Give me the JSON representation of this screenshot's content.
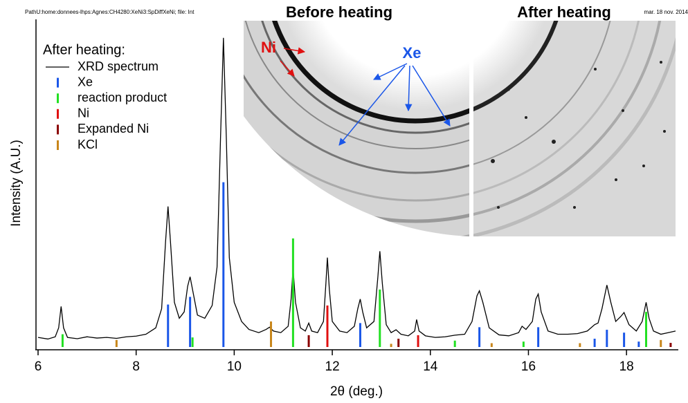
{
  "chart_data": {
    "type": "line",
    "path_text": "PathU:home:donnees-lhps:Agnes:CH4280:XeNi3:SpDiffXeNi; file: Int",
    "date_text": "mar. 18 nov. 2014",
    "panel_titles": [
      "Before heating",
      "After heating"
    ],
    "annotations": [
      "Ni",
      "Xe"
    ],
    "legend_title": "After heating:",
    "x_label": "2θ (deg.)",
    "y_label": "Intensity (A.U.)",
    "xlim": [
      6,
      19
    ],
    "xticks": [
      6,
      8,
      10,
      12,
      14,
      16,
      18
    ],
    "ylim": [
      0,
      100
    ],
    "series": [
      {
        "name": "XRD spectrum",
        "kind": "line",
        "color": "#000000",
        "x": [
          6.0,
          6.2,
          6.35,
          6.42,
          6.47,
          6.52,
          6.6,
          6.8,
          7.0,
          7.2,
          7.4,
          7.6,
          7.8,
          8.0,
          8.2,
          8.4,
          8.52,
          8.6,
          8.65,
          8.7,
          8.78,
          8.88,
          8.98,
          9.05,
          9.1,
          9.15,
          9.25,
          9.4,
          9.55,
          9.65,
          9.72,
          9.78,
          9.84,
          9.9,
          10.0,
          10.15,
          10.3,
          10.5,
          10.65,
          10.72,
          10.8,
          10.95,
          11.1,
          11.16,
          11.2,
          11.25,
          11.35,
          11.45,
          11.52,
          11.58,
          11.7,
          11.82,
          11.87,
          11.9,
          11.94,
          12.0,
          12.15,
          12.3,
          12.45,
          12.52,
          12.57,
          12.62,
          12.7,
          12.85,
          12.93,
          12.97,
          13.02,
          13.1,
          13.2,
          13.3,
          13.4,
          13.55,
          13.68,
          13.72,
          13.77,
          13.9,
          14.1,
          14.3,
          14.5,
          14.7,
          14.85,
          14.95,
          15.0,
          15.07,
          15.2,
          15.4,
          15.6,
          15.8,
          15.87,
          15.95,
          16.08,
          16.15,
          16.2,
          16.26,
          16.4,
          16.6,
          16.8,
          17.0,
          17.2,
          17.35,
          17.42,
          17.5,
          17.6,
          17.68,
          17.78,
          17.88,
          17.95,
          18.05,
          18.2,
          18.32,
          18.4,
          18.46,
          18.55,
          18.7,
          18.85,
          19.0
        ],
        "values": [
          3.0,
          2.5,
          3.2,
          6,
          12.7,
          6,
          3,
          2.6,
          3.2,
          2.8,
          3.0,
          2.7,
          3.2,
          3.4,
          4,
          6,
          12,
          33,
          44,
          33,
          14,
          9,
          11,
          19,
          22,
          18,
          10,
          9,
          13,
          25,
          65,
          96.8,
          65,
          28,
          14,
          8,
          5.5,
          4.5,
          5.5,
          6.2,
          5,
          4.5,
          6.5,
          15,
          24.7,
          14,
          6,
          5,
          7.5,
          5,
          4.5,
          8,
          20,
          28,
          18,
          8,
          5,
          4.5,
          6.5,
          12,
          15,
          11,
          6,
          8,
          22,
          30,
          20,
          7,
          4.5,
          5.4,
          4,
          3.5,
          5,
          8.6,
          5,
          3.5,
          3.0,
          3.2,
          3.7,
          4,
          8,
          16,
          17.6,
          14,
          6,
          3.8,
          3.5,
          4.5,
          6.5,
          5.5,
          8,
          15,
          16.6,
          11,
          5,
          4,
          4,
          4.2,
          5,
          7,
          7.5,
          12,
          19.4,
          14,
          8,
          9.5,
          10.8,
          7,
          5,
          8,
          14,
          9,
          5,
          4,
          4.5,
          5
        ]
      },
      {
        "name": "Xe",
        "kind": "bar",
        "color": "#1a56e8",
        "x": [
          8.65,
          9.1,
          9.78,
          12.57,
          15.0,
          16.2,
          17.35,
          17.6,
          17.95,
          18.25
        ],
        "values": [
          13.3,
          15.7,
          51.6,
          7.5,
          6.2,
          6.2,
          2.6,
          5.4,
          4.5,
          1.7
        ]
      },
      {
        "name": "reaction product",
        "kind": "bar",
        "color": "#22e022",
        "x": [
          6.5,
          9.15,
          11.2,
          12.97,
          14.5,
          15.9,
          18.4
        ],
        "values": [
          4,
          3,
          34,
          18,
          2,
          1.7,
          11
        ]
      },
      {
        "name": "Ni",
        "kind": "bar",
        "color": "#e01010",
        "x": [
          11.9,
          13.75
        ],
        "values": [
          13,
          3.7
        ]
      },
      {
        "name": "Expanded Ni",
        "kind": "bar",
        "color": "#8b0000",
        "x": [
          11.52,
          13.35,
          18.9
        ],
        "values": [
          3.7,
          2.6,
          1.3
        ]
      },
      {
        "name": "KCl",
        "kind": "bar",
        "color": "#c8861a",
        "x": [
          7.6,
          10.75,
          13.2,
          15.25,
          17.05,
          18.7
        ],
        "values": [
          2.2,
          8,
          1,
          1.2,
          1.2,
          2.2
        ]
      }
    ]
  }
}
